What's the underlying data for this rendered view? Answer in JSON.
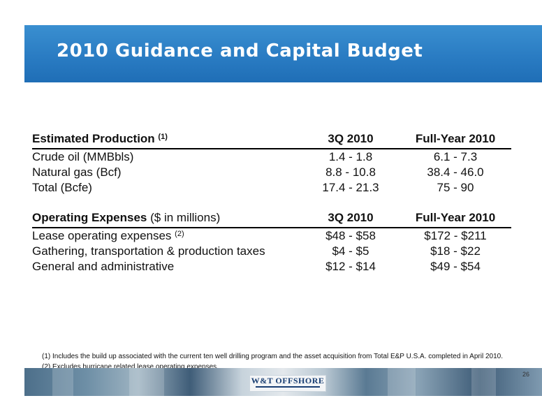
{
  "title": "2010 Guidance and Capital Budget",
  "production": {
    "heading": "Estimated Production",
    "heading_note": "(1)",
    "col1": "3Q 2010",
    "col2": "Full-Year 2010",
    "rows": [
      {
        "label": "Crude oil (MMBbls)",
        "q3": "1.4 - 1.8",
        "fy": "6.1 - 7.3"
      },
      {
        "label": "Natural gas (Bcf)",
        "q3": "8.8 - 10.8",
        "fy": "38.4 - 46.0"
      },
      {
        "label": "Total (Bcfe)",
        "q3": "17.4 - 21.3",
        "fy": "75 - 90"
      }
    ]
  },
  "opex": {
    "heading": "Operating Expenses",
    "heading_suffix": "($ in millions)",
    "col1": "3Q 2010",
    "col2": "Full-Year 2010",
    "rows": [
      {
        "label": "Lease operating expenses",
        "note": "(2)",
        "q3": "$48 - $58",
        "fy": "$172 - $211"
      },
      {
        "label": "Gathering, transportation & production taxes",
        "note": "",
        "q3": "$4 - $5",
        "fy": "$18 - $22"
      },
      {
        "label": "General and administrative",
        "note": "",
        "q3": "$12 - $14",
        "fy": "$49 - $54"
      }
    ]
  },
  "footnotes": [
    "(1) Includes the build up associated with the current ten well drilling program and the asset acquisition from Total E&P U.S.A. completed in April 2010.",
    "(2) Excludes hurricane related lease operating expenses."
  ],
  "footer": {
    "logo": "W&T OFFSHORE",
    "page_number": "26"
  }
}
